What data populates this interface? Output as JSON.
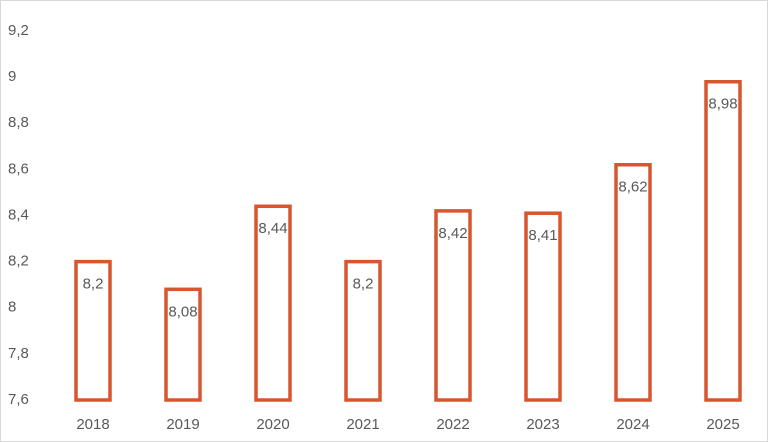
{
  "chart_data": {
    "type": "bar",
    "categories": [
      "2018",
      "2019",
      "2020",
      "2021",
      "2022",
      "2023",
      "2024",
      "2025"
    ],
    "values": [
      8.2,
      8.08,
      8.44,
      8.2,
      8.42,
      8.41,
      8.62,
      8.98
    ],
    "value_labels": [
      "8,2",
      "8,08",
      "8,44",
      "8,2",
      "8,42",
      "8,41",
      "8,62",
      "8,98"
    ],
    "color": "#d9552e",
    "ylim": [
      7.6,
      9.2
    ],
    "yticks": [
      {
        "value": 7.6,
        "label": "7,6"
      },
      {
        "value": 7.8,
        "label": "7,8"
      },
      8,
      {
        "value": 8.2,
        "label": "8,2"
      },
      {
        "value": 8.4,
        "label": "8,4"
      },
      {
        "value": 8.6,
        "label": "8,6"
      },
      {
        "value": 8.8,
        "label": "8,8"
      },
      9,
      {
        "value": 9.2,
        "label": "9,2"
      }
    ],
    "grid": false
  }
}
